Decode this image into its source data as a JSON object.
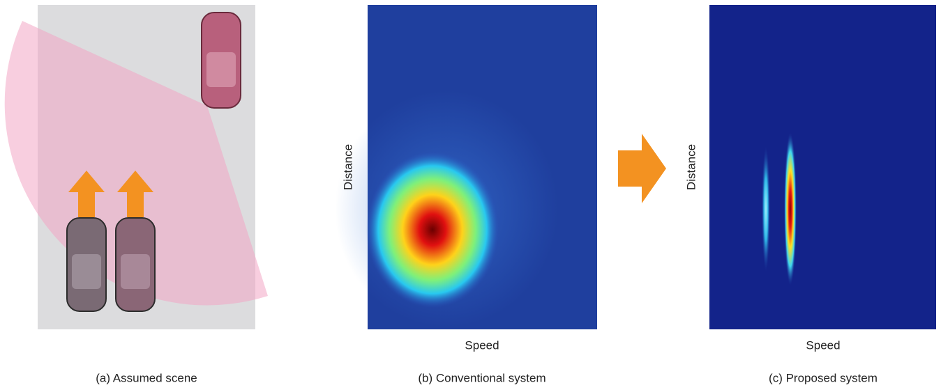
{
  "panels": [
    {
      "caption": "(a) Assumed scene"
    },
    {
      "caption": "(b) Conventional system",
      "y_label": "Distance",
      "x_label": "Speed"
    },
    {
      "caption": "(c) Proposed system",
      "y_label": "Distance",
      "x_label": "Speed"
    }
  ]
}
